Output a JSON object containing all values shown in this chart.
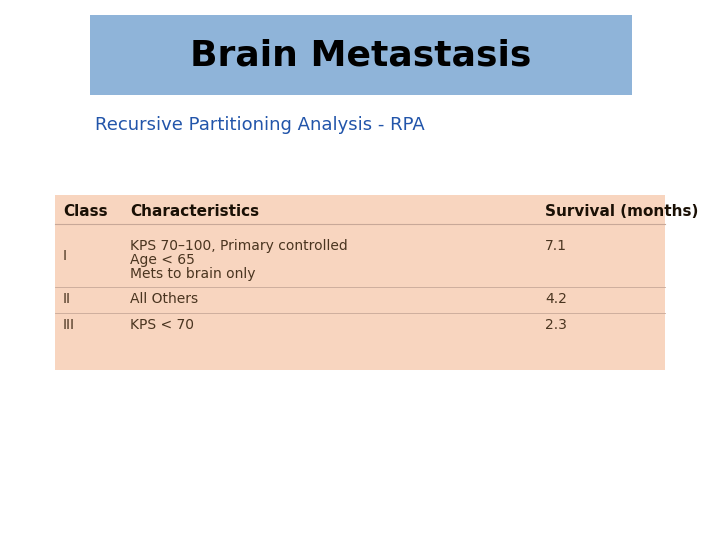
{
  "title": "Brain Metastasis",
  "subtitle": "Recursive Partitioning Analysis - RPA",
  "title_bg_color": "#8fb4d9",
  "table_bg_color": "#f8d5bf",
  "bg_color": "#ffffff",
  "title_fontsize": 26,
  "subtitle_fontsize": 13,
  "subtitle_color": "#2255aa",
  "header_row": [
    "Class",
    "Characteristics",
    "Survival (months)"
  ],
  "row1_col1": "I",
  "row1_col2_line1": "KPS 70–100, Primary controlled",
  "row1_col2_line2": "Age < 65",
  "row1_col2_line3": "Mets to brain only",
  "row1_col3": "7.1",
  "row2": [
    "II",
    "All Others",
    "4.2"
  ],
  "row3": [
    "III",
    "KPS < 70",
    "2.3"
  ],
  "text_color": "#4a3520",
  "header_text_color": "#1a1005",
  "table_font_size": 10
}
